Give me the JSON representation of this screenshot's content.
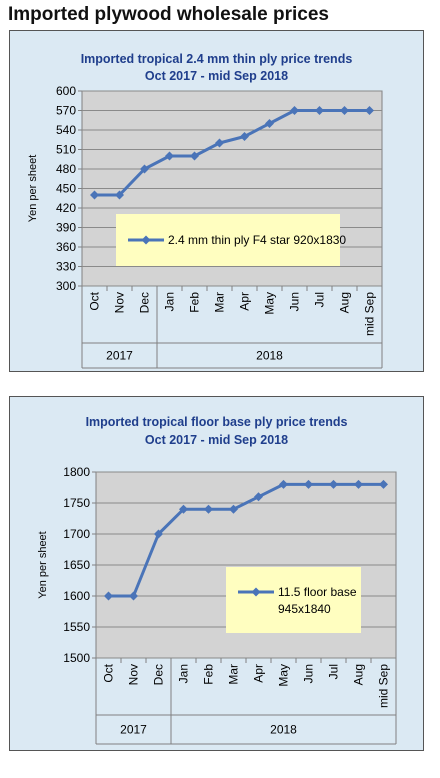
{
  "page": {
    "title": "Imported plywood wholesale prices"
  },
  "style": {
    "line_color": "#4a74b8",
    "plot_bg": "#d3d3d3",
    "panel_bg": "#dbe9f3",
    "legend_bg": "#fffec0",
    "title_color": "#1f3e8c"
  },
  "chart_data": [
    {
      "type": "line",
      "title": "Imported tropical 2.4 mm thin ply price trends",
      "subtitle": "Oct 2017 -  mid  Sep 2018",
      "ylabel": "Yen per sheet",
      "ylim": [
        300,
        600
      ],
      "ytick_step": 30,
      "yticks": [
        "300",
        "330",
        "360",
        "390",
        "420",
        "450",
        "480",
        "510",
        "540",
        "570",
        "600"
      ],
      "categories": [
        "Oct",
        "Nov",
        "Dec",
        "Jan",
        "Feb",
        "Mar",
        "Apr",
        "May",
        "Jun",
        "Jul",
        "Aug",
        "mid Sep"
      ],
      "year_groups": [
        {
          "label": "2017",
          "count": 3
        },
        {
          "label": "2018",
          "count": 9
        }
      ],
      "series": [
        {
          "name": "2.4 mm thin ply F4 star 920x1830",
          "values": [
            440,
            440,
            480,
            500,
            500,
            520,
            530,
            550,
            570,
            570,
            570,
            570
          ]
        }
      ],
      "legend": {
        "lines": [
          "2.4 mm thin ply F4 star 920x1830"
        ],
        "placement": "lower-right"
      },
      "grid": true
    },
    {
      "type": "line",
      "title": "Imported tropical floor base ply price trends",
      "subtitle": "Oct 2017 - mid Sep 2018",
      "ylabel": "Yen per sheet",
      "ylim": [
        1500,
        1800
      ],
      "ytick_step": 50,
      "yticks": [
        "1500",
        "1550",
        "1600",
        "1650",
        "1700",
        "1750",
        "1800"
      ],
      "categories": [
        "Oct",
        "Nov",
        "Dec",
        "Jan",
        "Feb",
        "Mar",
        "Apr",
        "May",
        "Jun",
        "Jul",
        "Aug",
        "mid Sep"
      ],
      "year_groups": [
        {
          "label": "2017",
          "count": 3
        },
        {
          "label": "2018",
          "count": 9
        }
      ],
      "series": [
        {
          "name": "11.5 floor base 945x1840",
          "values": [
            1600,
            1600,
            1700,
            1740,
            1740,
            1740,
            1760,
            1780,
            1780,
            1780,
            1780,
            1780
          ]
        }
      ],
      "legend": {
        "lines": [
          "11.5 floor base",
          "945x1840"
        ],
        "placement": "lower-right"
      },
      "grid": true
    }
  ]
}
